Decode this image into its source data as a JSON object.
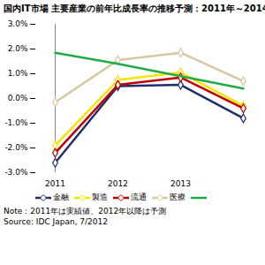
{
  "chart_data": {
    "type": "line",
    "title": "国内IT市場 主要産業の前年比成長率の推移予測：2011年～2014",
    "categories": [
      "2011",
      "2012",
      "2013",
      null
    ],
    "series": [
      {
        "name": "金融",
        "color": "#1f2f6e",
        "marker": "diamond",
        "values": [
          -2.6,
          0.5,
          0.55,
          -0.8
        ]
      },
      {
        "name": "製造",
        "color": "#f2e600",
        "marker": "diamond",
        "values": [
          -1.9,
          0.75,
          1.05,
          -0.3
        ]
      },
      {
        "name": "流通",
        "color": "#c00000",
        "marker": "diamond",
        "values": [
          -2.2,
          0.55,
          0.85,
          -0.4
        ]
      },
      {
        "name": "医療",
        "color": "#d6c8a0",
        "marker": "diamond",
        "values": [
          -0.15,
          1.55,
          1.85,
          0.7
        ]
      },
      {
        "name": null,
        "color": "#22aa44",
        "values": [
          1.85,
          1.4,
          0.9,
          0.4
        ]
      }
    ],
    "ylim": [
      -3,
      3
    ],
    "yticks": [
      {
        "value": -3,
        "label": "-3.0%"
      },
      {
        "value": -2,
        "label": "-2.0%"
      },
      {
        "value": -1,
        "label": "-1.0%"
      },
      {
        "value": 0,
        "label": "0.0%"
      },
      {
        "value": 1,
        "label": "1.0%"
      },
      {
        "value": 2,
        "label": "2.0%"
      },
      {
        "value": 3,
        "label": "3.0%"
      }
    ],
    "grid": false,
    "annotations": [
      "Note：2011年は実績値、2012年以降は予測",
      "Source: IDC Japan, 7/2012"
    ]
  }
}
